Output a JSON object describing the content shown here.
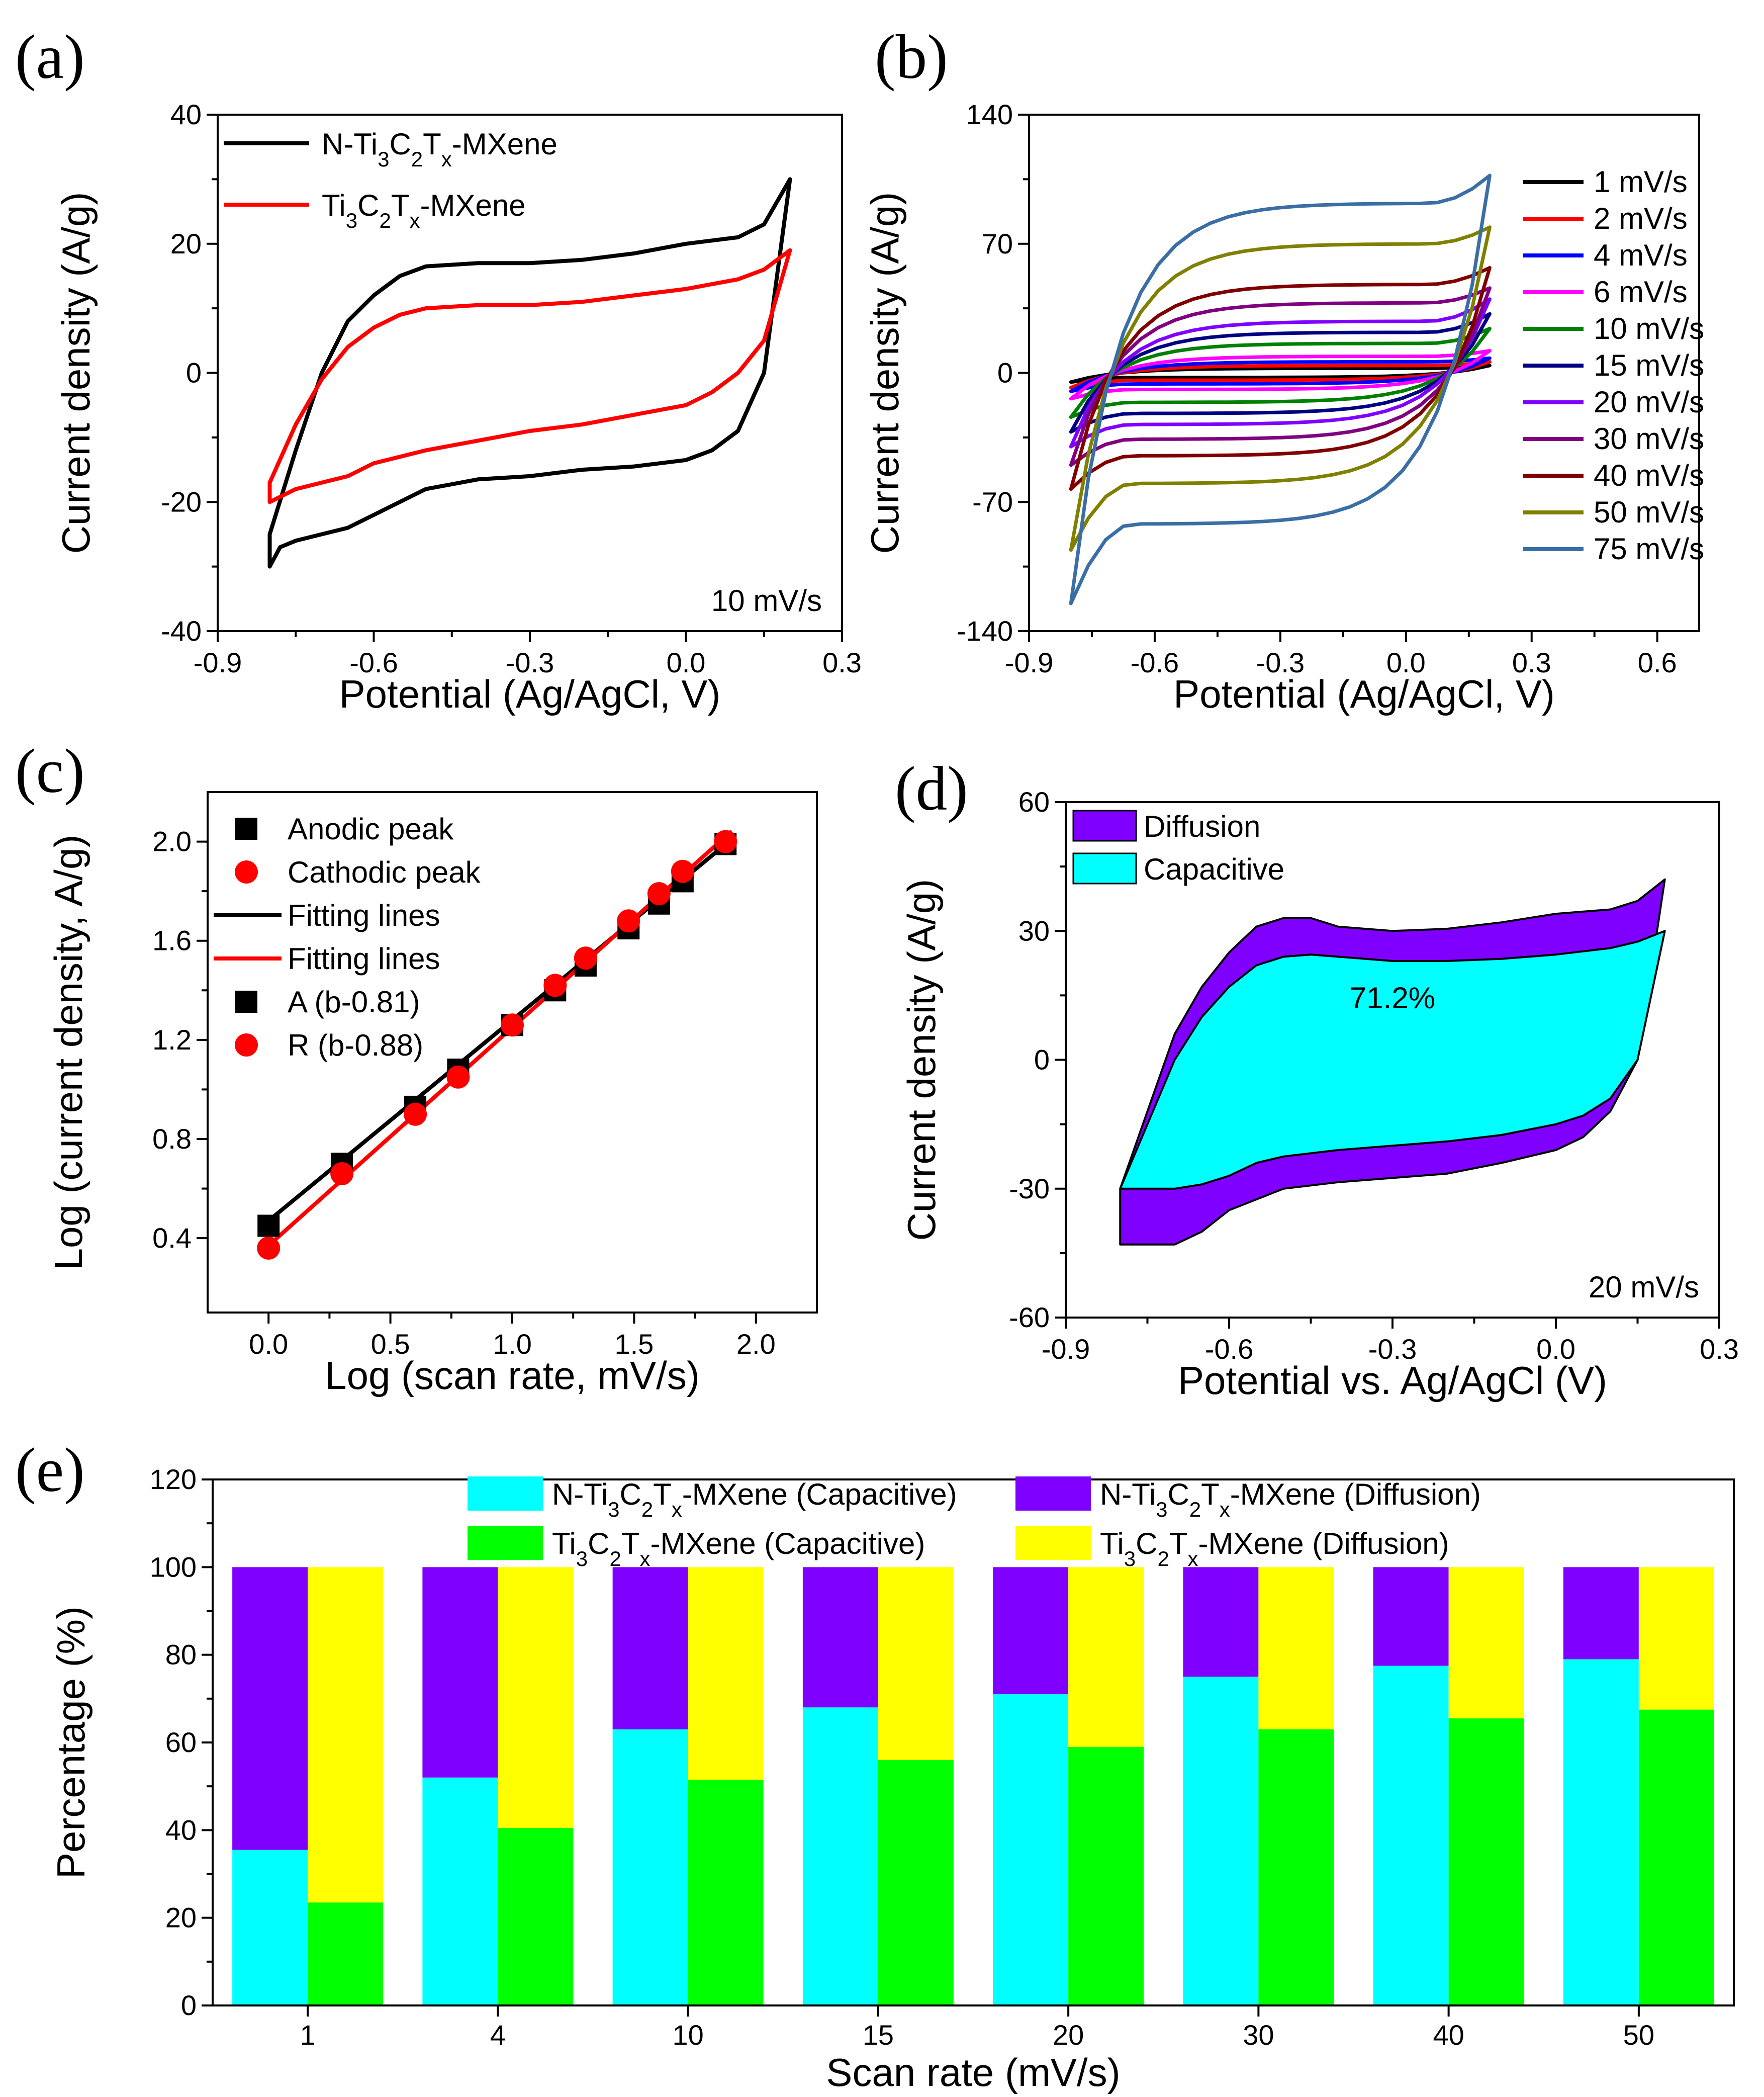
{
  "figure": {
    "panels": [
      "(a)",
      "(b)",
      "(c)",
      "(d)",
      "(e)"
    ]
  },
  "colors": {
    "black": "#000000",
    "red": "#ff0000",
    "blue": "#0000ff",
    "magenta": "#ff00ff",
    "green": "#008000",
    "navy": "#000080",
    "violet": "#8000ff",
    "purple": "#800080",
    "maroon": "#800000",
    "olive": "#808000",
    "steel": "#3a6ea5",
    "cyan": "#00ffff",
    "diffusion_purple": "#8000ff",
    "lime": "#00ff00",
    "yellow": "#ffff00"
  },
  "chart_data": [
    {
      "id": "a",
      "type": "line",
      "panel_label": "(a)",
      "xlabel": "Potential (Ag/AgCl, V)",
      "ylabel": "Current density (A/g)",
      "xlim": [
        -0.9,
        0.3
      ],
      "ylim": [
        -40,
        40
      ],
      "xticks": [
        "-0.9",
        "-0.6",
        "-0.3",
        "0.0",
        "0.3"
      ],
      "yticks": [
        "40",
        "20",
        "0",
        "-20",
        "-40"
      ],
      "xtick_values": [
        -0.9,
        -0.6,
        -0.3,
        0.0,
        0.3
      ],
      "ytick_values": [
        40,
        20,
        0,
        -20,
        -40
      ],
      "annotation": "10 mV/s",
      "legend": [
        {
          "name": "N-Ti3C2Tx-MXene",
          "parts": [
            "N-Ti",
            "3",
            "C",
            "2",
            "T",
            "x",
            "-MXene"
          ],
          "color": "#000000"
        },
        {
          "name": "Ti3C2Tx-MXene",
          "parts": [
            "Ti",
            "3",
            "C",
            "2",
            "T",
            "x",
            "-MXene"
          ],
          "color": "#ff0000"
        }
      ],
      "series": [
        {
          "name": "N-Ti3C2Tx-MXene",
          "color": "#000000",
          "x": [
            0.2,
            0.15,
            0.1,
            0.0,
            -0.1,
            -0.2,
            -0.3,
            -0.4,
            -0.5,
            -0.55,
            -0.6,
            -0.65,
            -0.7,
            -0.75,
            -0.8,
            -0.8,
            -0.78,
            -0.75,
            -0.7,
            -0.65,
            -0.6,
            -0.5,
            -0.4,
            -0.3,
            -0.2,
            -0.1,
            0.0,
            0.05,
            0.1,
            0.15,
            0.2
          ],
          "y": [
            30,
            23,
            21,
            20,
            18.5,
            17.5,
            17,
            17,
            16.5,
            15,
            12,
            8,
            0,
            -12,
            -25,
            -30,
            -27,
            -26,
            -25,
            -24,
            -22,
            -18,
            -16.5,
            -16,
            -15,
            -14.5,
            -13.5,
            -12,
            -9,
            0,
            30
          ]
        },
        {
          "name": "Ti3C2Tx-MXene",
          "color": "#ff0000",
          "x": [
            0.2,
            0.15,
            0.1,
            0.0,
            -0.1,
            -0.2,
            -0.3,
            -0.4,
            -0.5,
            -0.55,
            -0.6,
            -0.65,
            -0.7,
            -0.75,
            -0.8,
            -0.8,
            -0.75,
            -0.7,
            -0.65,
            -0.6,
            -0.5,
            -0.4,
            -0.3,
            -0.2,
            -0.1,
            0.0,
            0.05,
            0.1,
            0.15,
            0.2
          ],
          "y": [
            19,
            16,
            14.5,
            13,
            12,
            11,
            10.5,
            10.5,
            10,
            9,
            7,
            4,
            -1,
            -8,
            -17,
            -20,
            -18,
            -17,
            -16,
            -14,
            -12,
            -10.5,
            -9,
            -8,
            -6.5,
            -5,
            -3,
            0,
            5,
            19
          ]
        }
      ]
    },
    {
      "id": "b",
      "type": "line",
      "panel_label": "(b)",
      "xlabel": "Potential (Ag/AgCl, V)",
      "ylabel": "Current density (A/g)",
      "xlim": [
        -0.9,
        0.7
      ],
      "ylim": [
        -140,
        140
      ],
      "xticks": [
        "-0.9",
        "-0.6",
        "-0.3",
        "0.0",
        "0.3",
        "0.6"
      ],
      "yticks": [
        "140",
        "70",
        "0",
        "-70",
        "-140"
      ],
      "xtick_values": [
        -0.9,
        -0.6,
        -0.3,
        0.0,
        0.3,
        0.6
      ],
      "ytick_values": [
        140,
        70,
        0,
        -70,
        -140
      ],
      "series": [
        {
          "name": "1 mV/s",
          "color": "#000000",
          "upper": 2.5,
          "lower": -2.5,
          "top": 4,
          "bottom": -5
        },
        {
          "name": "2 mV/s",
          "color": "#ff0000",
          "upper": 4,
          "lower": -4,
          "top": 6,
          "bottom": -8
        },
        {
          "name": "4 mV/s",
          "color": "#0000ff",
          "upper": 6,
          "lower": -6,
          "top": 8,
          "bottom": -10
        },
        {
          "name": "6 mV/s",
          "color": "#ff00ff",
          "upper": 9,
          "lower": -9,
          "top": 12,
          "bottom": -14
        },
        {
          "name": "10 mV/s",
          "color": "#008000",
          "upper": 16,
          "lower": -16,
          "top": 24,
          "bottom": -24
        },
        {
          "name": "15 mV/s",
          "color": "#000080",
          "upper": 22,
          "lower": -22,
          "top": 32,
          "bottom": -32
        },
        {
          "name": "20 mV/s",
          "color": "#8000ff",
          "upper": 28,
          "lower": -28,
          "top": 40,
          "bottom": -40
        },
        {
          "name": "30 mV/s",
          "color": "#800080",
          "upper": 38,
          "lower": -36,
          "top": 46,
          "bottom": -50
        },
        {
          "name": "40 mV/s",
          "color": "#800000",
          "upper": 48,
          "lower": -45,
          "top": 57,
          "bottom": -63
        },
        {
          "name": "50 mV/s",
          "color": "#808000",
          "upper": 70,
          "lower": -60,
          "top": 79,
          "bottom": -96
        },
        {
          "name": "75 mV/s",
          "color": "#3a6ea5",
          "upper": 92,
          "lower": -82,
          "top": 107,
          "bottom": -125
        }
      ]
    },
    {
      "id": "c",
      "type": "scatter",
      "panel_label": "(c)",
      "xlabel": "Log (scan rate, mV/s)",
      "ylabel": "Log (current density, A/g)",
      "xlim": [
        -0.25,
        2.25
      ],
      "ylim": [
        0.1,
        2.2
      ],
      "xticks": [
        "0.0",
        "0.5",
        "1.0",
        "1.5",
        "2.0"
      ],
      "yticks": [
        "0.4",
        "0.8",
        "1.2",
        "1.6",
        "2.0"
      ],
      "xtick_values": [
        0.0,
        0.5,
        1.0,
        1.5,
        2.0
      ],
      "ytick_values": [
        0.4,
        0.8,
        1.2,
        1.6,
        2.0
      ],
      "legend": [
        {
          "name": "Anodic peak",
          "kind": "square",
          "color": "#000000"
        },
        {
          "name": "Cathodic peak",
          "kind": "circle",
          "color": "#ff0000"
        },
        {
          "name": "Fitting lines",
          "kind": "line",
          "color": "#000000"
        },
        {
          "name": "Fitting lines",
          "kind": "line",
          "color": "#ff0000"
        },
        {
          "name": "A (b-0.81)",
          "kind": "square",
          "color": "#000000"
        },
        {
          "name": "R (b-0.88)",
          "kind": "circle",
          "color": "#ff0000"
        }
      ],
      "series": [
        {
          "name": "Anodic peak",
          "marker": "square",
          "color": "#000000",
          "x": [
            0.0,
            0.301,
            0.602,
            0.778,
            1.0,
            1.176,
            1.301,
            1.477,
            1.602,
            1.699,
            1.875
          ],
          "y": [
            0.45,
            0.7,
            0.93,
            1.08,
            1.26,
            1.4,
            1.5,
            1.65,
            1.75,
            1.84,
            1.99
          ]
        },
        {
          "name": "Cathodic peak",
          "marker": "circle",
          "color": "#ff0000",
          "x": [
            0.0,
            0.301,
            0.602,
            0.778,
            1.0,
            1.176,
            1.301,
            1.477,
            1.602,
            1.699,
            1.875
          ],
          "y": [
            0.36,
            0.66,
            0.9,
            1.05,
            1.26,
            1.42,
            1.53,
            1.68,
            1.79,
            1.88,
            2.0
          ]
        }
      ],
      "fits": [
        {
          "name": "Fitting lines",
          "color": "#000000",
          "slope": 0.81,
          "intercept": 0.47
        },
        {
          "name": "Fitting lines",
          "color": "#ff0000",
          "slope": 0.88,
          "intercept": 0.37
        }
      ]
    },
    {
      "id": "d",
      "type": "area",
      "panel_label": "(d)",
      "xlabel": "Potential vs. Ag/AgCl (V)",
      "ylabel": "Current density (A/g)",
      "xlim": [
        -0.9,
        0.3
      ],
      "ylim": [
        -60,
        60
      ],
      "xticks": [
        "-0.9",
        "-0.6",
        "-0.3",
        "0.0",
        "0.3"
      ],
      "yticks": [
        "60",
        "30",
        "0",
        "-30",
        "-60"
      ],
      "xtick_values": [
        -0.9,
        -0.6,
        -0.3,
        0.0,
        0.3
      ],
      "ytick_values": [
        60,
        30,
        0,
        -30,
        -60
      ],
      "annotation": "20 mV/s",
      "percent_label": "71.2%",
      "legend": [
        {
          "name": "Diffusion",
          "color": "#8000ff"
        },
        {
          "name": "Capacitive",
          "color": "#00ffff"
        }
      ],
      "series": [
        {
          "name": "Diffusion",
          "color": "#8000ff",
          "x": [
            0.2,
            0.15,
            0.1,
            0.0,
            -0.1,
            -0.2,
            -0.3,
            -0.4,
            -0.45,
            -0.5,
            -0.55,
            -0.6,
            -0.65,
            -0.7,
            -0.75,
            -0.8,
            -0.8,
            -0.75,
            -0.7,
            -0.65,
            -0.6,
            -0.5,
            -0.4,
            -0.3,
            -0.2,
            -0.1,
            0.0,
            0.05,
            0.1,
            0.15,
            0.2
          ],
          "y": [
            42,
            37,
            35,
            34,
            32,
            30.5,
            30,
            31,
            33,
            33,
            31,
            25,
            17,
            6,
            -12,
            -30,
            -43,
            -43,
            -43,
            -40,
            -35,
            -30,
            -28.5,
            -27.5,
            -26.5,
            -24,
            -21,
            -18,
            -12,
            0,
            42
          ]
        },
        {
          "name": "Capacitive",
          "color": "#00ffff",
          "x": [
            0.2,
            0.15,
            0.1,
            0.0,
            -0.1,
            -0.2,
            -0.3,
            -0.4,
            -0.45,
            -0.5,
            -0.55,
            -0.6,
            -0.65,
            -0.7,
            -0.75,
            -0.8,
            -0.8,
            -0.7,
            -0.65,
            -0.6,
            -0.55,
            -0.5,
            -0.4,
            -0.3,
            -0.2,
            -0.1,
            0.0,
            0.05,
            0.1,
            0.15,
            0.2
          ],
          "y": [
            30,
            27.5,
            26,
            24.5,
            23.5,
            23,
            23,
            24,
            24.5,
            24,
            22,
            17,
            10,
            0,
            -15,
            -30,
            -30,
            -30,
            -29,
            -27,
            -24,
            -22.5,
            -21,
            -20,
            -19,
            -17.5,
            -15,
            -13,
            -9,
            0,
            30
          ]
        }
      ]
    },
    {
      "id": "e",
      "type": "bar",
      "panel_label": "(e)",
      "xlabel": "Scan rate (mV/s)",
      "ylabel": "Percentage (%)",
      "ylim": [
        0,
        120
      ],
      "yticks": [
        "0",
        "20",
        "40",
        "60",
        "80",
        "100",
        "120"
      ],
      "ytick_values": [
        0,
        20,
        40,
        60,
        80,
        100,
        120
      ],
      "categories": [
        "1",
        "4",
        "10",
        "15",
        "20",
        "30",
        "40",
        "50"
      ],
      "legend": [
        {
          "name": "N-Ti3C2Tx-MXene (Capacitive)",
          "parts": [
            "N-Ti",
            "3",
            "C",
            "2",
            "T",
            "x",
            "-MXene (Capacitive)"
          ],
          "color": "#00ffff"
        },
        {
          "name": "N-Ti3C2Tx-MXene (Diffusion)",
          "parts": [
            "N-Ti",
            "3",
            "C",
            "2",
            "T",
            "x",
            "-MXene (Diffusion)"
          ],
          "color": "#8000ff"
        },
        {
          "name": "Ti3C2Tx-MXene (Capacitive)",
          "parts": [
            "Ti",
            "3",
            "C",
            "2",
            "T",
            "x",
            "-MXene (Capacitive)"
          ],
          "color": "#00ff00"
        },
        {
          "name": "Ti3C2Tx-MXene (Diffusion)",
          "parts": [
            "Ti",
            "3",
            "C",
            "2",
            "T",
            "x",
            "-MXene (Diffusion)"
          ],
          "color": "#ffff00"
        }
      ],
      "series": [
        {
          "name": "N-Ti3C2Tx-MXene (Capacitive)",
          "values": [
            35.5,
            52,
            63,
            68,
            71,
            75,
            77.5,
            79
          ]
        },
        {
          "name": "N-Ti3C2Tx-MXene (Diffusion)",
          "values": [
            64.5,
            48,
            37,
            32,
            29,
            25,
            22.5,
            21
          ]
        },
        {
          "name": "Ti3C2Tx-MXene (Capacitive)",
          "values": [
            23.5,
            40.5,
            51.5,
            56,
            59,
            63,
            65.5,
            67.5
          ]
        },
        {
          "name": "Ti3C2Tx-MXene (Diffusion)",
          "values": [
            76.5,
            59.5,
            48.5,
            44,
            41,
            37,
            34.5,
            32.5
          ]
        }
      ]
    }
  ]
}
